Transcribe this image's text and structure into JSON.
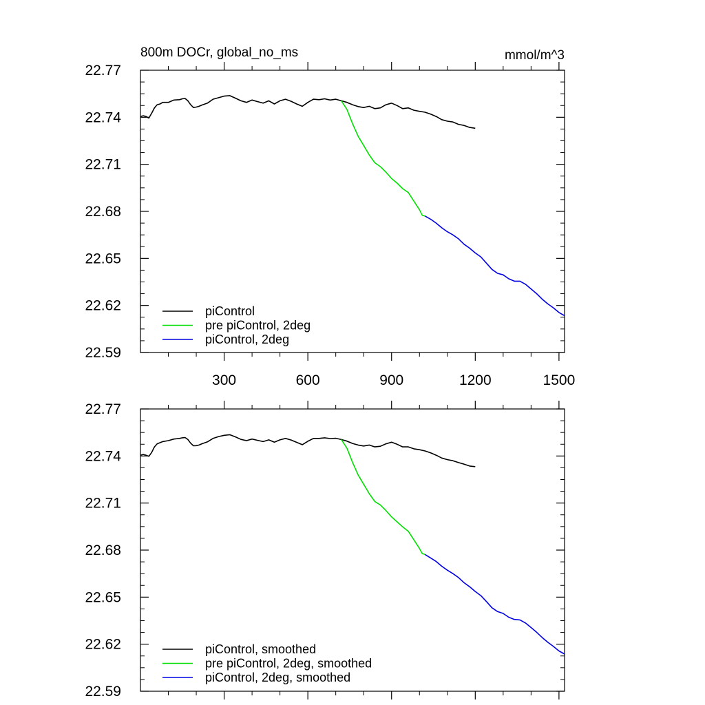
{
  "figure": {
    "title_left": "800m DOCr, global_no_ms",
    "title_right": "mmol/m^3"
  },
  "chart_data": [
    {
      "type": "line",
      "xlim": [
        0,
        1520
      ],
      "ylim": [
        22.59,
        22.77
      ],
      "x_ticks": [
        300,
        600,
        900,
        1200,
        1500
      ],
      "x_tick_labels": [
        "300",
        "600",
        "900",
        "1200",
        "1500"
      ],
      "y_ticks": [
        22.59,
        22.62,
        22.65,
        22.68,
        22.71,
        22.74,
        22.77
      ],
      "y_tick_labels": [
        "22.59",
        "22.62",
        "22.65",
        "22.68",
        "22.71",
        "22.74",
        "22.77"
      ],
      "legend_position": "bottom-left",
      "series": [
        {
          "name": "piControl",
          "color": "#000000",
          "x": [
            0,
            10,
            20,
            30,
            40,
            50,
            60,
            70,
            80,
            100,
            120,
            140,
            150,
            160,
            170,
            180,
            190,
            200,
            210,
            220,
            240,
            260,
            280,
            300,
            320,
            340,
            360,
            380,
            400,
            420,
            440,
            460,
            480,
            500,
            520,
            540,
            560,
            580,
            600,
            620,
            640,
            660,
            680,
            700,
            720,
            740,
            760,
            780,
            800,
            820,
            840,
            860,
            880,
            900,
            920,
            940,
            960,
            980,
            1000,
            1020,
            1040,
            1060,
            1080,
            1100,
            1120,
            1140,
            1160,
            1180,
            1200
          ],
          "y": [
            22.7405,
            22.741,
            22.7405,
            22.7395,
            22.7425,
            22.746,
            22.748,
            22.7485,
            22.7495,
            22.7495,
            22.751,
            22.7512,
            22.7518,
            22.752,
            22.7505,
            22.748,
            22.7462,
            22.7465,
            22.747,
            22.7478,
            22.749,
            22.7515,
            22.7525,
            22.7535,
            22.7538,
            22.7522,
            22.7505,
            22.7495,
            22.751,
            22.75,
            22.749,
            22.7505,
            22.7485,
            22.7505,
            22.7515,
            22.7502,
            22.7485,
            22.747,
            22.7495,
            22.7515,
            22.7512,
            22.7518,
            22.751,
            22.7515,
            22.7505,
            22.7495,
            22.748,
            22.7468,
            22.7462,
            22.747,
            22.7455,
            22.746,
            22.748,
            22.749,
            22.7475,
            22.7455,
            22.746,
            22.7445,
            22.7438,
            22.7432,
            22.742,
            22.7405,
            22.7385,
            22.7375,
            22.737,
            22.7355,
            22.7348,
            22.7335,
            22.733
          ]
        },
        {
          "name": "pre piControl, 2deg",
          "color": "#00e000",
          "x": [
            720,
            740,
            760,
            780,
            800,
            820,
            840,
            860,
            880,
            900,
            920,
            940,
            960,
            980,
            1000,
            1010,
            1020
          ],
          "y": [
            22.7505,
            22.745,
            22.736,
            22.728,
            22.722,
            22.716,
            22.711,
            22.7085,
            22.705,
            22.701,
            22.698,
            22.6945,
            22.692,
            22.6865,
            22.681,
            22.6775,
            22.677
          ]
        },
        {
          "name": "piControl, 2deg",
          "color": "#0000e0",
          "x": [
            1020,
            1040,
            1060,
            1080,
            1100,
            1120,
            1140,
            1160,
            1180,
            1200,
            1220,
            1240,
            1260,
            1280,
            1300,
            1320,
            1340,
            1360,
            1380,
            1400,
            1420,
            1440,
            1460,
            1480,
            1500,
            1520
          ],
          "y": [
            22.677,
            22.675,
            22.6725,
            22.6695,
            22.667,
            22.665,
            22.6625,
            22.659,
            22.6565,
            22.6535,
            22.651,
            22.647,
            22.643,
            22.6405,
            22.6395,
            22.637,
            22.6355,
            22.6355,
            22.6335,
            22.6305,
            22.6275,
            22.624,
            22.621,
            22.6185,
            22.6155,
            22.6135
          ]
        }
      ]
    },
    {
      "type": "line",
      "xlim": [
        0,
        1520
      ],
      "ylim": [
        22.59,
        22.77
      ],
      "x_ticks": [
        300,
        600,
        900,
        1200,
        1500
      ],
      "y_ticks": [
        22.59,
        22.62,
        22.65,
        22.68,
        22.71,
        22.74,
        22.77
      ],
      "y_tick_labels": [
        "22.59",
        "22.62",
        "22.65",
        "22.68",
        "22.71",
        "22.74",
        "22.77"
      ],
      "legend_position": "bottom-left",
      "series": [
        {
          "name": "piControl, smoothed",
          "color": "#000000",
          "x": [
            0,
            10,
            20,
            30,
            40,
            50,
            60,
            70,
            80,
            100,
            120,
            140,
            150,
            160,
            170,
            180,
            190,
            200,
            210,
            220,
            240,
            260,
            280,
            300,
            320,
            340,
            360,
            380,
            400,
            420,
            440,
            460,
            480,
            500,
            520,
            540,
            560,
            580,
            600,
            620,
            640,
            660,
            680,
            700,
            720,
            740,
            760,
            780,
            800,
            820,
            840,
            860,
            880,
            900,
            920,
            940,
            960,
            980,
            1000,
            1020,
            1040,
            1060,
            1080,
            1100,
            1120,
            1140,
            1160,
            1180,
            1200
          ],
          "y": [
            22.7405,
            22.741,
            22.7405,
            22.7398,
            22.7422,
            22.7458,
            22.7478,
            22.7485,
            22.7492,
            22.7498,
            22.7508,
            22.7512,
            22.7516,
            22.7518,
            22.7505,
            22.7482,
            22.7465,
            22.7466,
            22.747,
            22.7478,
            22.749,
            22.7512,
            22.7524,
            22.7532,
            22.7536,
            22.7522,
            22.7506,
            22.7498,
            22.7508,
            22.75,
            22.7492,
            22.7503,
            22.7488,
            22.7503,
            22.7512,
            22.7502,
            22.7487,
            22.7472,
            22.7494,
            22.7512,
            22.7512,
            22.7516,
            22.7511,
            22.7513,
            22.7505,
            22.7495,
            22.748,
            22.747,
            22.7464,
            22.747,
            22.7458,
            22.7462,
            22.7478,
            22.7488,
            22.7475,
            22.7458,
            22.7458,
            22.7446,
            22.744,
            22.7432,
            22.742,
            22.7405,
            22.7387,
            22.7377,
            22.737,
            22.7358,
            22.7348,
            22.7336,
            22.7332
          ]
        },
        {
          "name": "pre piControl, 2deg, smoothed",
          "color": "#00e000",
          "x": [
            720,
            740,
            760,
            780,
            800,
            820,
            840,
            860,
            880,
            900,
            920,
            940,
            960,
            980,
            1000,
            1010,
            1020
          ],
          "y": [
            22.7505,
            22.745,
            22.736,
            22.728,
            22.722,
            22.716,
            22.711,
            22.7088,
            22.7052,
            22.7012,
            22.698,
            22.6948,
            22.692,
            22.6865,
            22.681,
            22.6778,
            22.6772
          ]
        },
        {
          "name": "piControl, 2deg, smoothed",
          "color": "#0000e0",
          "x": [
            1020,
            1040,
            1060,
            1080,
            1100,
            1120,
            1140,
            1160,
            1180,
            1200,
            1220,
            1240,
            1260,
            1280,
            1300,
            1320,
            1340,
            1360,
            1380,
            1400,
            1420,
            1440,
            1460,
            1480,
            1500,
            1520
          ],
          "y": [
            22.6772,
            22.675,
            22.6727,
            22.6697,
            22.6672,
            22.665,
            22.6625,
            22.6592,
            22.6566,
            22.6536,
            22.651,
            22.6472,
            22.6432,
            22.6408,
            22.6396,
            22.6372,
            22.6358,
            22.6355,
            22.6335,
            22.6306,
            22.6276,
            22.6242,
            22.6212,
            22.6186,
            22.6157,
            22.6137
          ]
        }
      ]
    }
  ]
}
